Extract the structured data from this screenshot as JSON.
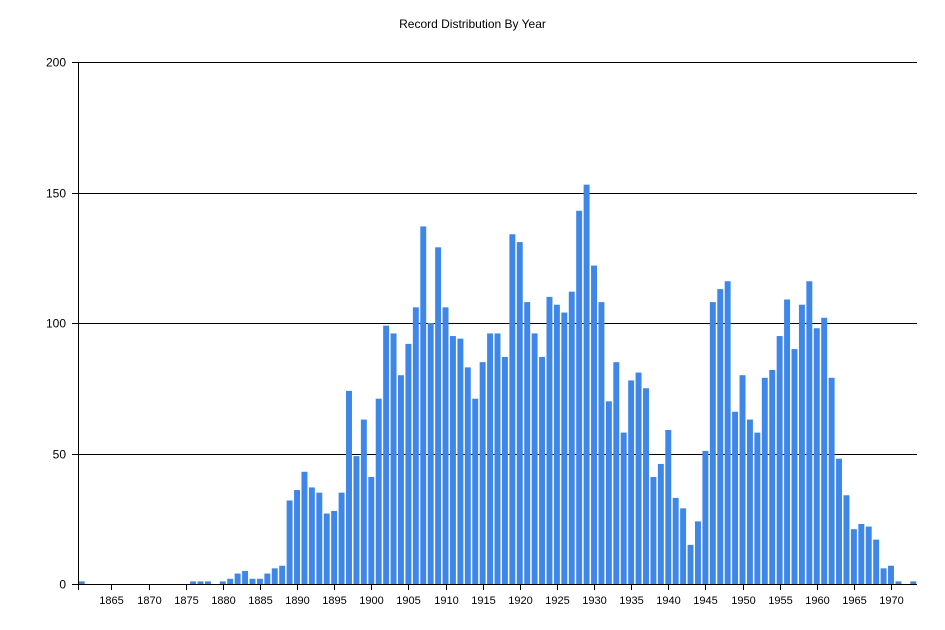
{
  "chart_data": {
    "type": "bar",
    "title": "Record Distribution By Year",
    "xlabel": "",
    "ylabel": "",
    "x": [
      1861,
      1862,
      1863,
      1864,
      1865,
      1866,
      1867,
      1868,
      1869,
      1870,
      1871,
      1872,
      1873,
      1874,
      1875,
      1876,
      1877,
      1878,
      1879,
      1880,
      1881,
      1882,
      1883,
      1884,
      1885,
      1886,
      1887,
      1888,
      1889,
      1890,
      1891,
      1892,
      1893,
      1894,
      1895,
      1896,
      1897,
      1898,
      1899,
      1900,
      1901,
      1902,
      1903,
      1904,
      1905,
      1906,
      1907,
      1908,
      1909,
      1910,
      1911,
      1912,
      1913,
      1914,
      1915,
      1916,
      1917,
      1918,
      1919,
      1920,
      1921,
      1922,
      1923,
      1924,
      1925,
      1926,
      1927,
      1928,
      1929,
      1930,
      1931,
      1932,
      1933,
      1934,
      1935,
      1936,
      1937,
      1938,
      1939,
      1940,
      1941,
      1942,
      1943,
      1944,
      1945,
      1946,
      1947,
      1948,
      1949,
      1950,
      1951,
      1952,
      1953,
      1954,
      1955,
      1956,
      1957,
      1958,
      1959,
      1960,
      1961,
      1962,
      1963,
      1964,
      1965,
      1966,
      1967,
      1968,
      1969,
      1970,
      1971,
      1972,
      1973
    ],
    "values": [
      1,
      0,
      0,
      0,
      0,
      0,
      0,
      0,
      0,
      0,
      0,
      0,
      0,
      0,
      0,
      1,
      1,
      1,
      0,
      1,
      2,
      4,
      5,
      2,
      2,
      4,
      6,
      7,
      32,
      36,
      43,
      37,
      35,
      27,
      28,
      35,
      74,
      49,
      63,
      41,
      71,
      99,
      96,
      80,
      92,
      106,
      137,
      100,
      129,
      106,
      95,
      94,
      83,
      71,
      85,
      96,
      96,
      87,
      134,
      131,
      108,
      96,
      87,
      110,
      107,
      104,
      112,
      143,
      153,
      122,
      108,
      70,
      85,
      58,
      78,
      81,
      75,
      41,
      46,
      59,
      33,
      29,
      15,
      24,
      51,
      108,
      113,
      116,
      66,
      80,
      63,
      58,
      79,
      82,
      95,
      109,
      90,
      107,
      116,
      98,
      102,
      79,
      48,
      34,
      21,
      23,
      22,
      17,
      6,
      7,
      1,
      0,
      1
    ],
    "x_ticks": [
      "1865",
      "1870",
      "1875",
      "1880",
      "1885",
      "1890",
      "1895",
      "1900",
      "1905",
      "1910",
      "1915",
      "1920",
      "1925",
      "1930",
      "1935",
      "1940",
      "1945",
      "1950",
      "1955",
      "1960",
      "1965",
      "1970"
    ],
    "y_ticks": [
      "0",
      "50",
      "100",
      "150",
      "200"
    ],
    "ylim": [
      0,
      200
    ],
    "xlim": [
      1860.5,
      1973.5
    ],
    "grid": "horizontal",
    "legend": "none",
    "bar_color": "#3e86e8"
  }
}
